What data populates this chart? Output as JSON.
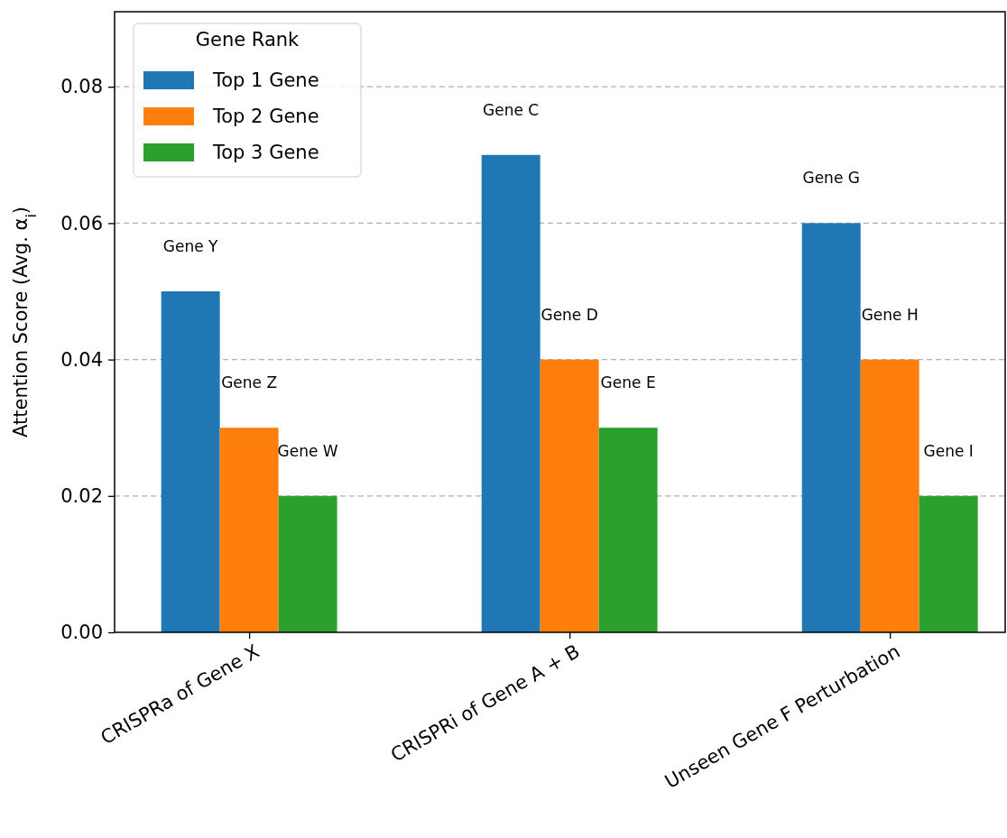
{
  "chart_data": {
    "type": "bar",
    "ylabel": "Attention Score (Avg. α$_{i}$)",
    "legend_title": "Gene Rank",
    "legend": "top left",
    "grid": "y",
    "categories": [
      "CRISPRa of Gene X",
      "CRISPRi of Gene A + B",
      "Unseen Gene F Perturbation"
    ],
    "series": [
      {
        "name": "Top 1 Gene",
        "color": "#1f77b4",
        "values": [
          0.05,
          0.07,
          0.06
        ]
      },
      {
        "name": "Top 2 Gene",
        "color": "#ff7f0e",
        "values": [
          0.03,
          0.04,
          0.04
        ]
      },
      {
        "name": "Top 3 Gene",
        "color": "#2ca02c",
        "values": [
          0.02,
          0.03,
          0.02
        ]
      }
    ],
    "ylim": [
      0,
      0.091
    ],
    "yticks": [
      {
        "value": 0,
        "label": "0.00"
      },
      {
        "value": 0.02,
        "label": "0.02"
      },
      {
        "value": 0.04,
        "label": "0.04"
      },
      {
        "value": 0.06,
        "label": "0.06"
      },
      {
        "value": 0.08,
        "label": "0.08"
      }
    ],
    "annotations": [
      "Gene Y",
      "Gene Z",
      "Gene W",
      "Gene C",
      "Gene D",
      "Gene E",
      "Gene G",
      "Gene H",
      "Gene I"
    ]
  }
}
